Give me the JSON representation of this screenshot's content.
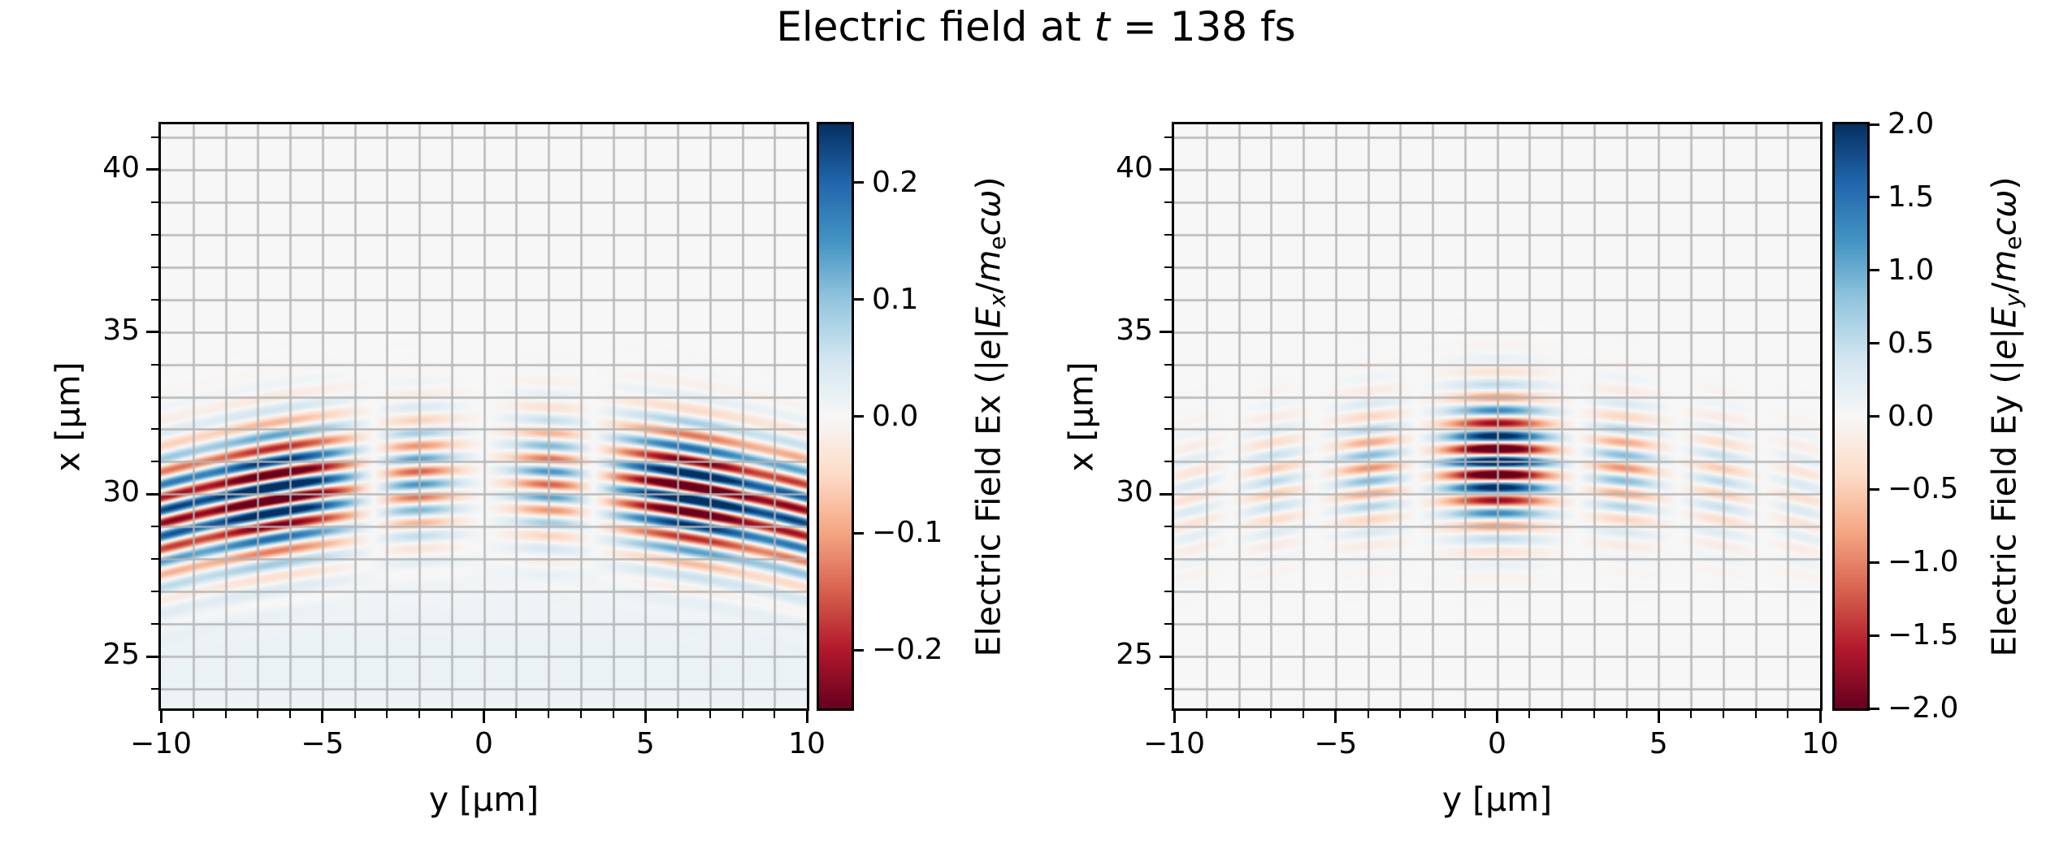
{
  "title_tokens": [
    {
      "t": "Electric field at "
    },
    {
      "t": "t",
      "i": true
    },
    {
      "t": " = 138 fs"
    }
  ],
  "colors": {
    "background": "#ffffff",
    "grid": "#b3b3b3",
    "spine": "#000000",
    "tick": "#000000",
    "cmap_name": "RdBu",
    "cmap_stops": [
      [
        0.0,
        "#67001f"
      ],
      [
        0.1,
        "#b2182b"
      ],
      [
        0.2,
        "#d6604d"
      ],
      [
        0.3,
        "#f4a582"
      ],
      [
        0.4,
        "#fddbc7"
      ],
      [
        0.5,
        "#f7f7f7"
      ],
      [
        0.6,
        "#d1e5f0"
      ],
      [
        0.7,
        "#92c5de"
      ],
      [
        0.8,
        "#4393c3"
      ],
      [
        0.9,
        "#2166ac"
      ],
      [
        1.0,
        "#053061"
      ]
    ]
  },
  "chart_data": [
    {
      "type": "heatmap",
      "id": "Ex",
      "xlabel": "y [μm]",
      "ylabel": "x [μm]",
      "xlim": [
        -10,
        10
      ],
      "ylim": [
        23.4,
        41.4
      ],
      "xticks": [
        {
          "v": -10,
          "label": "−10"
        },
        {
          "v": -5,
          "label": "−5"
        },
        {
          "v": 0,
          "label": "0"
        },
        {
          "v": 5,
          "label": "5"
        },
        {
          "v": 10,
          "label": "10"
        }
      ],
      "yticks": [
        {
          "v": 25,
          "label": "25"
        },
        {
          "v": 30,
          "label": "30"
        },
        {
          "v": 35,
          "label": "35"
        },
        {
          "v": 40,
          "label": "40"
        }
      ],
      "minor_tick_step": 1,
      "grid_step": 1,
      "colorbar": {
        "vmin": -0.25,
        "vmax": 0.25,
        "ticks": [
          {
            "v": 0.2,
            "label": "0.2"
          },
          {
            "v": 0.1,
            "label": "0.1"
          },
          {
            "v": 0.0,
            "label": "0.0"
          },
          {
            "v": -0.1,
            "label": "−0.1"
          },
          {
            "v": -0.2,
            "label": "−0.2"
          }
        ],
        "label_tokens": [
          {
            "t": "Electric Field Ex (|"
          },
          {
            "t": "e",
            "i": true
          },
          {
            "t": "|"
          },
          {
            "t": "E",
            "i": true
          },
          {
            "t": "x",
            "i": true,
            "sub": true
          },
          {
            "t": "/"
          },
          {
            "t": "m",
            "i": true
          },
          {
            "t": "e",
            "sub": true
          },
          {
            "t": "c",
            "i": true
          },
          {
            "t": "ω",
            "i": true
          },
          {
            "t": ")"
          }
        ]
      },
      "field_model": {
        "description": "Longitudinal laser field: antisymmetric side lobes at y≈±6.5 µm (opposite sign), weaker opposite-sign inner lobes at y≈±2.2 µm, null seam at y=0; 0.8 µm wavelength stripes; pulse centred at x≈30.6 µm with curved (drooping) wavefronts; faint positive wake tint below x≈27 µm",
        "amplitude": 0.34,
        "x_center": 30.55,
        "sigma_x": 1.85,
        "wavelength_um": 0.8,
        "wavefront_R": 40,
        "carrier": "sin",
        "y_lobes": [
          {
            "c": -6.5,
            "w": 2.6,
            "a": 1.0
          },
          {
            "c": 6.5,
            "w": 2.6,
            "a": -1.0
          },
          {
            "c": -9.9,
            "w": 1.2,
            "a": 0.5
          },
          {
            "c": 9.9,
            "w": 1.2,
            "a": -0.5
          },
          {
            "c": -2.2,
            "w": 1.4,
            "a": -0.5
          },
          {
            "c": 2.2,
            "w": 1.4,
            "a": 0.5
          }
        ],
        "background_terms": [
          {
            "x_c": 24.9,
            "x_w": 3.0,
            "a": 0.016
          }
        ]
      }
    },
    {
      "type": "heatmap",
      "id": "Ey",
      "xlabel": "y [μm]",
      "ylabel": "x [μm]",
      "xlim": [
        -10,
        10
      ],
      "ylim": [
        23.4,
        41.4
      ],
      "xticks": [
        {
          "v": -10,
          "label": "−10"
        },
        {
          "v": -5,
          "label": "−5"
        },
        {
          "v": 0,
          "label": "0"
        },
        {
          "v": 5,
          "label": "5"
        },
        {
          "v": 10,
          "label": "10"
        }
      ],
      "yticks": [
        {
          "v": 25,
          "label": "25"
        },
        {
          "v": 30,
          "label": "30"
        },
        {
          "v": 35,
          "label": "35"
        },
        {
          "v": 40,
          "label": "40"
        }
      ],
      "minor_tick_step": 1,
      "grid_step": 1,
      "colorbar": {
        "vmin": -2.0,
        "vmax": 2.0,
        "ticks": [
          {
            "v": 2.0,
            "label": "2.0"
          },
          {
            "v": 1.5,
            "label": "1.5"
          },
          {
            "v": 1.0,
            "label": "1.0"
          },
          {
            "v": 0.5,
            "label": "0.5"
          },
          {
            "v": 0.0,
            "label": "0.0"
          },
          {
            "v": -0.5,
            "label": "−0.5"
          },
          {
            "v": -1.0,
            "label": "−1.0"
          },
          {
            "v": -1.5,
            "label": "−1.5"
          },
          {
            "v": -2.0,
            "label": "−2.0"
          }
        ],
        "label_tokens": [
          {
            "t": "Electric Field Ey (|"
          },
          {
            "t": "e",
            "i": true
          },
          {
            "t": "|"
          },
          {
            "t": "E",
            "i": true
          },
          {
            "t": "y",
            "i": true,
            "sub": true
          },
          {
            "t": "/"
          },
          {
            "t": "m",
            "i": true
          },
          {
            "t": "e",
            "sub": true
          },
          {
            "t": "c",
            "i": true
          },
          {
            "t": "ω",
            "i": true
          },
          {
            "t": ")"
          }
        ]
      },
      "field_model": {
        "description": "Transverse laser field: strong saturated central lobe |y|<2.5 µm, sign-flipped side lobes at y≈±3.9 µm, weaker lobes at ±6.9 and ±9.4 µm; 0.8 µm wavelength stripes; pulse centred at x≈31 µm with curved (drooping) wavefronts",
        "amplitude": 2.7,
        "x_center": 31.0,
        "sigma_x": 1.85,
        "wavelength_um": 0.8,
        "wavefront_R": 40,
        "carrier": "cos",
        "y_lobes": [
          {
            "c": 0.0,
            "w": 1.55,
            "a": 1.0
          },
          {
            "c": -3.9,
            "w": 1.15,
            "a": -0.34
          },
          {
            "c": 3.9,
            "w": 1.15,
            "a": -0.34
          },
          {
            "c": -6.9,
            "w": 1.0,
            "a": 0.2
          },
          {
            "c": 6.9,
            "w": 1.0,
            "a": 0.2
          },
          {
            "c": -9.4,
            "w": 0.95,
            "a": -0.12
          },
          {
            "c": 9.4,
            "w": 0.95,
            "a": -0.12
          }
        ],
        "background_terms": []
      }
    }
  ]
}
